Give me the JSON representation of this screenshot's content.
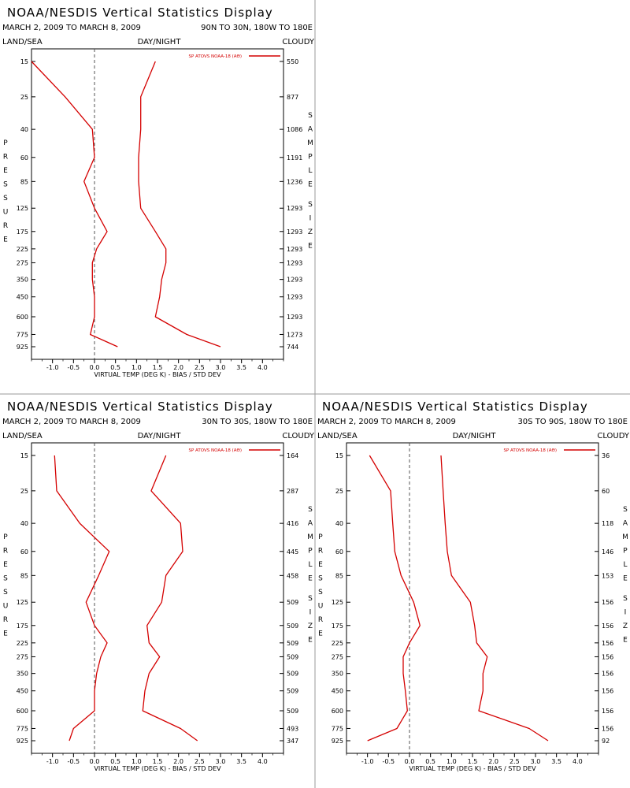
{
  "chart_data": [
    {
      "type": "line",
      "title": "NOAA/NESDIS Vertical Statistics Display",
      "date_range": "MARCH 2, 2009 TO MARCH 8, 2009",
      "region": "90N TO 30N, 180W TO 180E",
      "corner_labels": [
        "LAND/SEA",
        "DAY/NIGHT",
        "CLOUDY"
      ],
      "xlabel": "VIRTUAL TEMP (DEG K) - BIAS / STD DEV",
      "ylabel": "PRESSURE",
      "right_label": "SAMPLE SIZE",
      "legend": "SP ATOVS NOAA-18 (AΘ)",
      "xlim": [
        -1.5,
        4.5
      ],
      "x_ticks": [
        "-1.0",
        "-0.5",
        "0.0",
        "0.5",
        "1.0",
        "1.5",
        "2.0",
        "2.5",
        "3.0",
        "3.5",
        "4.0"
      ],
      "pressure_levels": [
        "15",
        "25",
        "40",
        "60",
        "85",
        "125",
        "175",
        "225",
        "275",
        "350",
        "450",
        "600",
        "775",
        "925"
      ],
      "sample_size": [
        "550",
        "877",
        "1086",
        "1191",
        "1236",
        "1293",
        "1293",
        "1293",
        "1293",
        "1293",
        "1293",
        "1293",
        "1273",
        "744"
      ],
      "series": [
        {
          "values": [
            -1.5,
            -0.7,
            -0.05,
            0.0,
            -0.25,
            0.0,
            0.3,
            0.05,
            -0.05,
            -0.05,
            0.0,
            0.0,
            -0.1,
            0.55
          ]
        },
        {
          "values": [
            1.45,
            1.1,
            1.1,
            1.05,
            1.05,
            1.1,
            1.45,
            1.7,
            1.7,
            1.6,
            1.55,
            1.45,
            2.2,
            3.0
          ]
        }
      ]
    },
    {
      "type": "line",
      "title": "NOAA/NESDIS Vertical Statistics Display",
      "date_range": "MARCH 2, 2009 TO MARCH 8, 2009",
      "region": "30N TO 30S, 180W TO 180E",
      "corner_labels": [
        "LAND/SEA",
        "DAY/NIGHT",
        "CLOUDY"
      ],
      "xlabel": "VIRTUAL TEMP (DEG K) - BIAS / STD DEV",
      "ylabel": "PRESSURE",
      "right_label": "SAMPLE SIZE",
      "legend": "SP ATOVS NOAA-18 (AΘ)",
      "xlim": [
        -1.5,
        4.5
      ],
      "x_ticks": [
        "-1.0",
        "-0.5",
        "0.0",
        "0.5",
        "1.0",
        "1.5",
        "2.0",
        "2.5",
        "3.0",
        "3.5",
        "4.0"
      ],
      "pressure_levels": [
        "15",
        "25",
        "40",
        "60",
        "85",
        "125",
        "175",
        "225",
        "275",
        "350",
        "450",
        "600",
        "775",
        "925"
      ],
      "sample_size": [
        "164",
        "287",
        "416",
        "445",
        "458",
        "509",
        "509",
        "509",
        "509",
        "509",
        "509",
        "509",
        "493",
        "347"
      ],
      "series": [
        {
          "values": [
            -0.95,
            -0.9,
            -0.35,
            0.35,
            0.1,
            -0.2,
            0.0,
            0.3,
            0.15,
            0.05,
            0.0,
            0.0,
            -0.5,
            -0.6
          ]
        },
        {
          "values": [
            1.7,
            1.35,
            2.05,
            2.1,
            1.7,
            1.6,
            1.25,
            1.3,
            1.55,
            1.3,
            1.2,
            1.15,
            2.05,
            2.45
          ]
        }
      ]
    },
    {
      "type": "line",
      "title": "NOAA/NESDIS Vertical Statistics Display",
      "date_range": "MARCH 2, 2009 TO MARCH 8, 2009",
      "region": "30S TO 90S, 180W TO 180E",
      "corner_labels": [
        "LAND/SEA",
        "DAY/NIGHT",
        "CLOUDY"
      ],
      "xlabel": "VIRTUAL TEMP (DEG K) - BIAS / STD DEV",
      "ylabel": "PRESSURE",
      "right_label": "SAMPLE SIZE",
      "legend": "SP ATOVS NOAA-18 (AΘ)",
      "xlim": [
        -1.5,
        4.5
      ],
      "x_ticks": [
        "-1.0",
        "-0.5",
        "0.0",
        "0.5",
        "1.0",
        "1.5",
        "2.0",
        "2.5",
        "3.0",
        "3.5",
        "4.0"
      ],
      "pressure_levels": [
        "15",
        "25",
        "40",
        "60",
        "85",
        "125",
        "175",
        "225",
        "275",
        "350",
        "450",
        "600",
        "775",
        "925"
      ],
      "sample_size": [
        "36",
        "60",
        "118",
        "146",
        "153",
        "156",
        "156",
        "156",
        "156",
        "156",
        "156",
        "156",
        "156",
        "92"
      ],
      "series": [
        {
          "values": [
            -0.95,
            -0.45,
            -0.4,
            -0.35,
            -0.2,
            0.1,
            0.25,
            0.0,
            -0.15,
            -0.15,
            -0.1,
            -0.05,
            -0.3,
            -1.0
          ]
        },
        {
          "values": [
            0.75,
            0.8,
            0.85,
            0.9,
            1.0,
            1.45,
            1.55,
            1.6,
            1.85,
            1.75,
            1.75,
            1.65,
            2.85,
            3.3
          ]
        }
      ]
    }
  ]
}
